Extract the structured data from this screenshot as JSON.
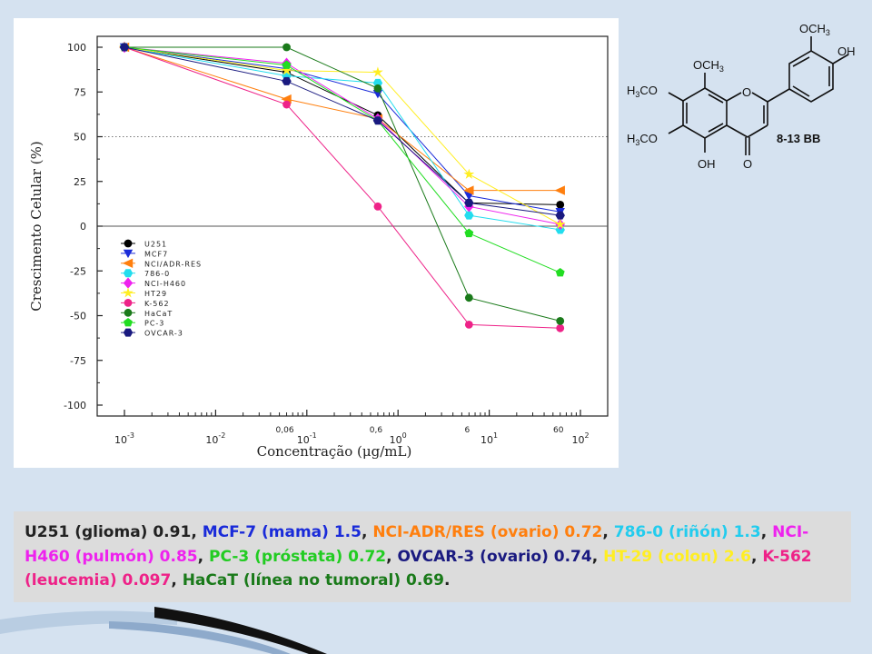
{
  "chart_data": {
    "type": "line",
    "xlabel": "Concentração (μg/mL)",
    "ylabel": "Crescimento Celular (%)",
    "x_scale": "log",
    "xlim": [
      0.001,
      100
    ],
    "ylim": [
      -100,
      100
    ],
    "yticks": [
      100,
      75,
      50,
      25,
      0,
      -25,
      -50,
      -75,
      -100
    ],
    "xtick_labels": [
      {
        "value": 0.001,
        "base": "10",
        "exp": "-3"
      },
      {
        "value": 0.01,
        "base": "10",
        "exp": "-2"
      },
      {
        "value": 0.1,
        "base": "10",
        "exp": "-1"
      },
      {
        "value": 1,
        "base": "10",
        "exp": "0"
      },
      {
        "value": 10,
        "base": "10",
        "exp": "1"
      },
      {
        "value": 100,
        "base": "10",
        "exp": "2"
      }
    ],
    "dose_labels": [
      {
        "value": 0.06,
        "label": "0,06"
      },
      {
        "value": 0.6,
        "label": "0,6"
      },
      {
        "value": 6,
        "label": "6"
      },
      {
        "value": 60,
        "label": "60"
      }
    ],
    "reference_lines": [
      50,
      0
    ],
    "x": [
      0.001,
      0.06,
      0.6,
      6,
      60
    ],
    "series": [
      {
        "name": "U251",
        "color": "#000000",
        "marker": "circle",
        "values": [
          100,
          86,
          62,
          13,
          12
        ]
      },
      {
        "name": "MCF7",
        "color": "#1a2bd9",
        "marker": "triangle-down",
        "values": [
          100,
          88,
          74,
          17,
          8
        ]
      },
      {
        "name": "NCI/ADR-RES",
        "color": "#ff7f0e",
        "marker": "triangle-left",
        "values": [
          100,
          71,
          60,
          20,
          20
        ]
      },
      {
        "name": "786-0",
        "color": "#22ddee",
        "marker": "hexagon",
        "values": [
          100,
          84,
          80,
          6,
          -2
        ]
      },
      {
        "name": "NCI-H460",
        "color": "#ee22ee",
        "marker": "diamond",
        "values": [
          100,
          91,
          60,
          11,
          1
        ]
      },
      {
        "name": "HT29",
        "color": "#ffee22",
        "marker": "star",
        "values": [
          100,
          87,
          86,
          29,
          1
        ]
      },
      {
        "name": "K-562",
        "color": "#ee2288",
        "marker": "circle",
        "values": [
          100,
          68,
          11,
          -55,
          -57
        ]
      },
      {
        "name": "HaCaT",
        "color": "#1a7a1a",
        "marker": "circle",
        "values": [
          100,
          100,
          77,
          -40,
          -53
        ]
      },
      {
        "name": "PC-3",
        "color": "#22dd22",
        "marker": "pentagon",
        "values": [
          100,
          90,
          59,
          -4,
          -26
        ]
      },
      {
        "name": "OVCAR-3",
        "color": "#1a1a80",
        "marker": "hexagon",
        "values": [
          100,
          81,
          59,
          13,
          6
        ]
      }
    ]
  },
  "structure": {
    "label": "8-13 BB",
    "och3_top": "OCH",
    "och3_mid": "OCH",
    "h3co_1": "H",
    "h3co_1_tail": "CO",
    "h3co_2": "H",
    "h3co_2_tail": "CO",
    "oh_right": "OH",
    "oh_bottom": "OH",
    "ring_o": "O",
    "carbonyl_o": "O",
    "sub3": "3"
  },
  "caption": {
    "parts": [
      {
        "text": "U251 (glioma) 0.91",
        "color": "#222222"
      },
      {
        "text": ", ",
        "color": "#222222"
      },
      {
        "text": "MCF-7 (mama) 1.5",
        "color": "#1a2bd9"
      },
      {
        "text": ", ",
        "color": "#222222"
      },
      {
        "text": "NCI-ADR/RES (ovario) 0.72",
        "color": "#ff7f0e"
      },
      {
        "text": ", ",
        "color": "#222222"
      },
      {
        "text": "786-0 (riñón) 1.3",
        "color": "#22ccee"
      },
      {
        "text": ", ",
        "color": "#222222"
      },
      {
        "text": "NCI-H460 (pulmón) 0.85",
        "color": "#ee22ee"
      },
      {
        "text": ", ",
        "color": "#222222"
      },
      {
        "text": "PC-3 (próstata) 0.72",
        "color": "#22cc22"
      },
      {
        "text": ", ",
        "color": "#222222"
      },
      {
        "text": "OVCAR-3 (ovario) 0.74",
        "color": "#1a1a80"
      },
      {
        "text": ", ",
        "color": "#222222"
      },
      {
        "text": "HT-29 (colon) 2.6",
        "color": "#ffee22"
      },
      {
        "text": ", ",
        "color": "#222222"
      },
      {
        "text": "K-562 (leucemia) 0.097",
        "color": "#ee2288"
      },
      {
        "text": ", ",
        "color": "#222222"
      },
      {
        "text": "HaCaT (línea no tumoral) 0.69",
        "color": "#1a7a1a"
      },
      {
        "text": ".",
        "color": "#222222"
      }
    ]
  }
}
